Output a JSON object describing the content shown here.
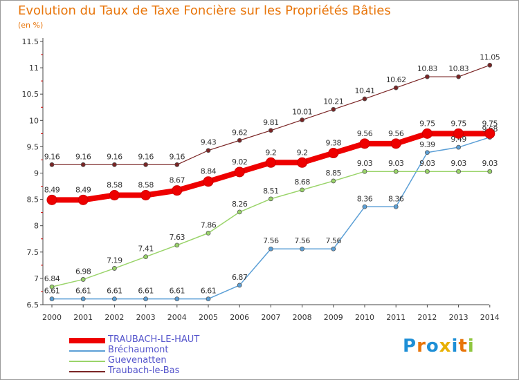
{
  "header": {
    "title": "Evolution du Taux de Taxe Foncière sur les Propriétés Bâties",
    "unit": "(en %)"
  },
  "logo": {
    "letters": [
      "P",
      "r",
      "o",
      "x",
      "i",
      "t",
      "i"
    ],
    "colors": [
      "#1e8fd6",
      "#e8750a",
      "#1e8fd6",
      "#e8b000",
      "#1e8fd6",
      "#e8750a",
      "#8fc63f"
    ]
  },
  "chart_data": {
    "type": "line",
    "title": "Evolution du Taux de Taxe Foncière sur les Propriétés Bâties",
    "ylabel": "(en %)",
    "xlabel": "",
    "ylim": [
      6.5,
      11.5
    ],
    "yticks": [
      "6.5",
      "7",
      "7.5",
      "8",
      "8.5",
      "9",
      "9.5",
      "10",
      "10.5",
      "11",
      "11.5"
    ],
    "categories": [
      "2000",
      "2001",
      "2002",
      "2003",
      "2004",
      "2005",
      "2006",
      "2007",
      "2008",
      "2009",
      "2010",
      "2011",
      "2012",
      "2013",
      "2014"
    ],
    "series": [
      {
        "name": "Traubach-le-Bas",
        "color": "#7a2424",
        "width": 1.2,
        "r": 3,
        "values": [
          9.16,
          9.16,
          9.16,
          9.16,
          9.16,
          9.43,
          9.62,
          9.81,
          10.01,
          10.21,
          10.41,
          10.62,
          10.83,
          10.83,
          11.05
        ],
        "labels": [
          "9.16",
          "9.16",
          "9.16",
          "9.16",
          "9.16",
          "9.43",
          "9.62",
          "9.81",
          "10.01",
          "10.21",
          "10.41",
          "10.62",
          "10.83",
          "10.83",
          "11.05"
        ]
      },
      {
        "name": "Bréchaumont",
        "color": "#5b9fd6",
        "width": 1.5,
        "r": 3,
        "values": [
          6.61,
          6.61,
          6.61,
          6.61,
          6.61,
          6.61,
          6.87,
          7.56,
          7.56,
          7.56,
          8.36,
          8.36,
          9.39,
          9.49,
          9.68
        ],
        "labels": [
          "6.61",
          "6.61",
          "6.61",
          "6.61",
          "6.61",
          "6.61",
          "6.87",
          "7.56",
          "7.56",
          "7.56",
          "8.36",
          "8.36",
          "9.39",
          "9.49",
          "9.68"
        ]
      },
      {
        "name": "Guevenatten",
        "color": "#9ad46a",
        "width": 1.5,
        "r": 3,
        "values": [
          6.84,
          6.98,
          7.19,
          7.41,
          7.63,
          7.86,
          8.26,
          8.51,
          8.68,
          8.85,
          9.03,
          9.03,
          9.03,
          9.03,
          9.03
        ],
        "labels": [
          "6.84",
          "6.98",
          "7.19",
          "7.41",
          "7.63",
          "7.86",
          "8.26",
          "8.51",
          "8.68",
          "8.85",
          "9.03",
          "9.03",
          "9.03",
          "9.03",
          "9.03"
        ]
      },
      {
        "name": "TRAUBACH-LE-HAUT",
        "color": "#ee0000",
        "width": 8,
        "r": 7,
        "values": [
          8.49,
          8.49,
          8.58,
          8.58,
          8.67,
          8.84,
          9.02,
          9.2,
          9.2,
          9.38,
          9.56,
          9.56,
          9.75,
          9.75,
          9.75
        ],
        "labels": [
          "8.49",
          "8.49",
          "8.58",
          "8.58",
          "8.67",
          "8.84",
          "9.02",
          "9.2",
          "9.2",
          "9.38",
          "9.56",
          "9.56",
          "9.75",
          "9.75",
          "9.75"
        ]
      }
    ],
    "legend_order": [
      "TRAUBACH-LE-HAUT",
      "Bréchaumont",
      "Guevenatten",
      "Traubach-le-Bas"
    ]
  }
}
